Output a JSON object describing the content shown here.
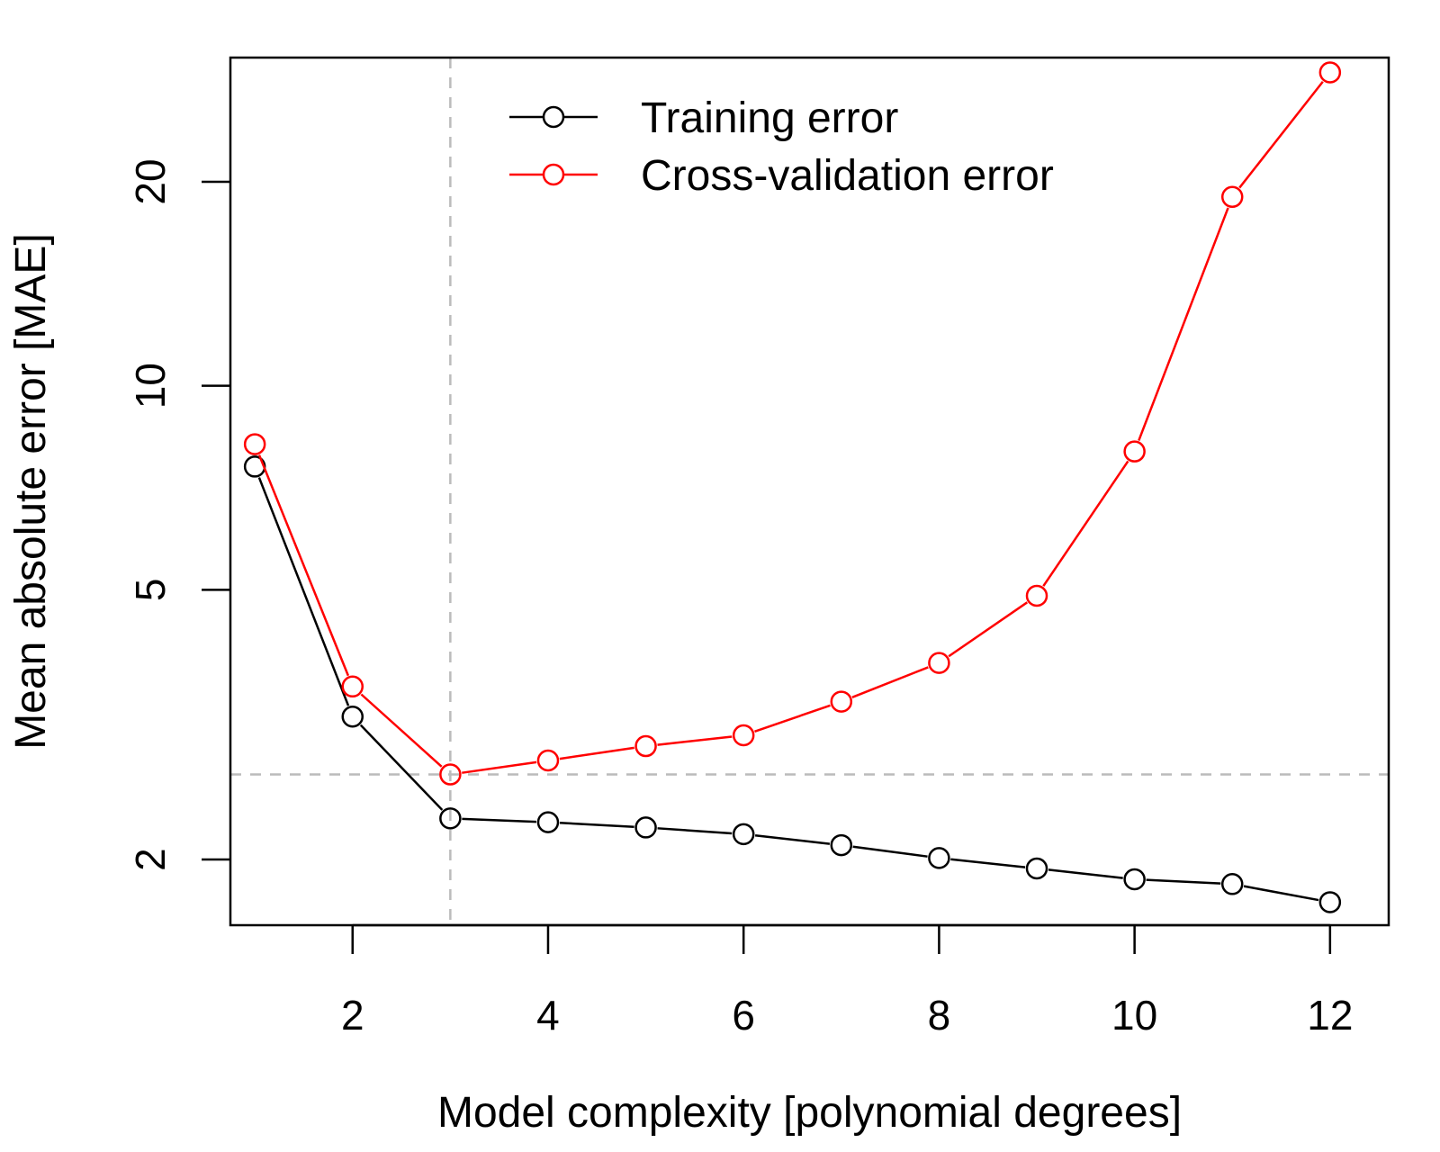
{
  "chart_data": {
    "type": "line",
    "title": "",
    "xlabel": "Model complexity [polynomial degrees]",
    "ylabel": "Mean absolute error [MAE]",
    "y_scale": "log",
    "xlim": [
      0.75,
      12.6
    ],
    "ylim": [
      1.6,
      30.5
    ],
    "x_ticks": [
      2,
      4,
      6,
      8,
      10,
      12
    ],
    "x_tick_labels": [
      "2",
      "4",
      "6",
      "8",
      "10",
      "12"
    ],
    "y_ticks": [
      2,
      5,
      10,
      20
    ],
    "y_tick_labels": [
      "2",
      "5",
      "10",
      "20"
    ],
    "grid": false,
    "legend_position": "top",
    "x": [
      1,
      2,
      3,
      4,
      5,
      6,
      7,
      8,
      9,
      10,
      11,
      12
    ],
    "series": [
      {
        "name": "Training error",
        "color": "#000000",
        "values": [
          7.6,
          3.25,
          2.3,
          2.27,
          2.23,
          2.18,
          2.1,
          2.01,
          1.94,
          1.87,
          1.84,
          1.73
        ]
      },
      {
        "name": "Cross-validation error",
        "color": "#ff0000",
        "values": [
          8.2,
          3.6,
          2.67,
          2.8,
          2.94,
          3.05,
          3.42,
          3.9,
          4.9,
          8.0,
          19.0,
          29.0
        ]
      }
    ],
    "reference_lines": {
      "vertical_x": 3,
      "horizontal_y": 2.67,
      "color": "#bbbbbb"
    }
  }
}
